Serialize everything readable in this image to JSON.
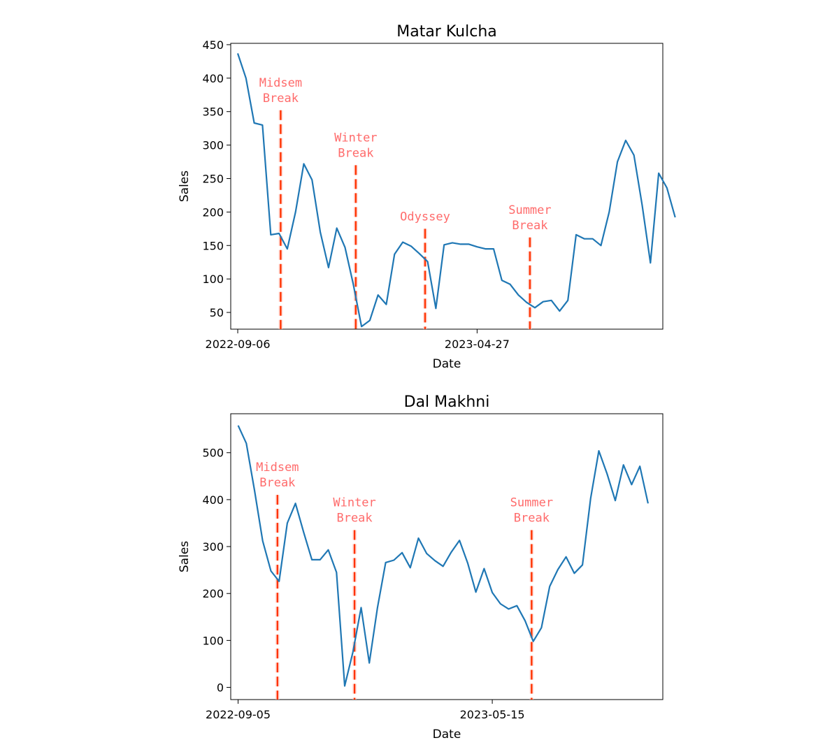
{
  "chart_data": [
    {
      "type": "line",
      "title": "Matar Kulcha",
      "xlabel": "Date",
      "ylabel": "Sales",
      "ylim": [
        25,
        452
      ],
      "yticks": [
        50,
        100,
        150,
        200,
        250,
        300,
        350,
        400,
        450
      ],
      "xlim": [
        -0.85,
        51.5
      ],
      "xticks": [
        {
          "x": 0,
          "label": "2022-09-06"
        },
        {
          "x": 29,
          "label": "2023-04-27"
        }
      ],
      "line_color": "#1f77b4",
      "values": [
        437,
        400,
        333,
        330,
        166,
        168,
        145,
        200,
        272,
        248,
        170,
        117,
        176,
        147,
        92,
        29,
        38,
        76,
        62,
        137,
        155,
        149,
        138,
        126,
        56,
        151,
        154,
        152,
        152,
        148,
        145,
        145,
        98,
        92,
        76,
        65,
        57,
        66,
        68,
        52,
        68,
        166,
        160,
        160,
        150,
        200,
        275,
        307,
        285,
        210,
        124,
        258,
        236,
        192
      ],
      "events": [
        {
          "label": "Midsem\nBreak",
          "x": 5.2,
          "top": 352
        },
        {
          "label": "Winter\nBreak",
          "x": 14.3,
          "top": 270
        },
        {
          "label": "Odyssey",
          "x": 22.7,
          "top": 175
        },
        {
          "label": "Summer\nBreak",
          "x": 35.4,
          "top": 162
        }
      ],
      "event_color": "#ff3300",
      "annotation_color": "#ff6b6b"
    },
    {
      "type": "line",
      "title": "Dal Makhni",
      "xlabel": "Date",
      "ylabel": "Sales",
      "ylim": [
        -26,
        583
      ],
      "yticks": [
        0,
        100,
        200,
        300,
        400,
        500
      ],
      "xlim": [
        -0.9,
        51.8
      ],
      "xticks": [
        {
          "x": 0,
          "label": "2022-09-05"
        },
        {
          "x": 31,
          "label": "2023-05-15"
        }
      ],
      "line_color": "#1f77b4",
      "values": [
        558,
        520,
        420,
        312,
        248,
        226,
        350,
        392,
        330,
        272,
        272,
        293,
        245,
        3,
        75,
        170,
        52,
        170,
        266,
        271,
        287,
        255,
        318,
        285,
        270,
        258,
        288,
        313,
        265,
        203,
        253,
        202,
        178,
        167,
        174,
        142,
        98,
        127,
        215,
        251,
        278,
        243,
        261,
        403,
        504,
        455,
        398,
        474,
        432,
        471,
        392
      ],
      "events": [
        {
          "label": "Midsem\nBreak",
          "x": 4.8,
          "top": 410
        },
        {
          "label": "Winter\nBreak",
          "x": 14.2,
          "top": 335
        },
        {
          "label": "Summer\nBreak",
          "x": 35.8,
          "top": 335
        }
      ],
      "event_color": "#ff3300",
      "annotation_color": "#ff6b6b"
    }
  ]
}
